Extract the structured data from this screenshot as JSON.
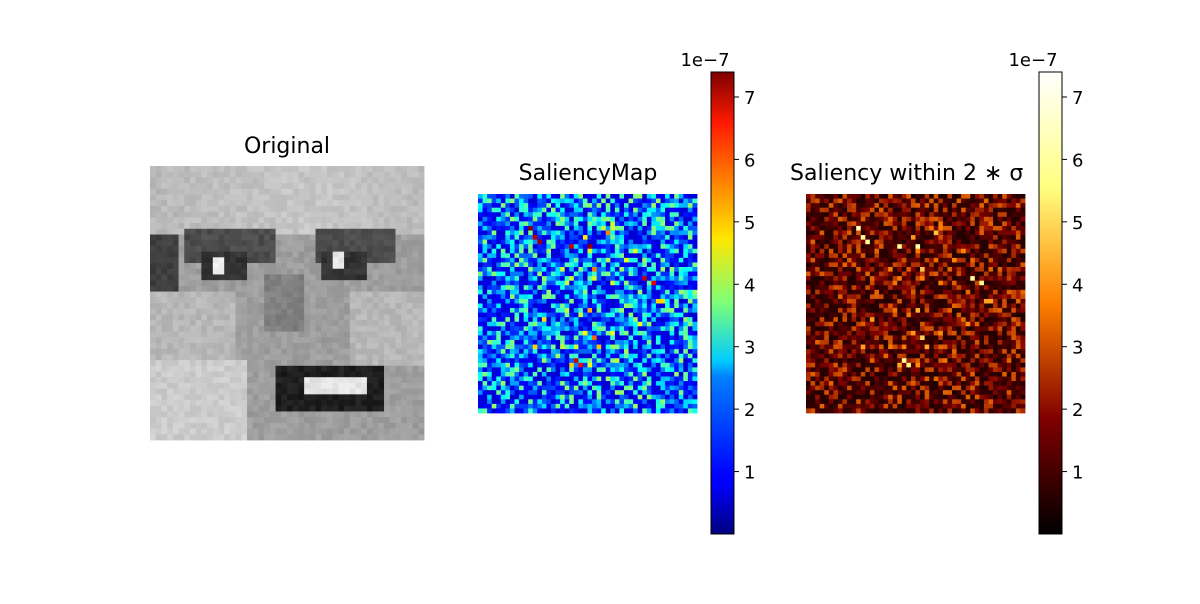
{
  "chart_data": [
    {
      "type": "heatmap",
      "title": "Original",
      "colormap": "gray",
      "grid": false,
      "axes": "off",
      "description_value_range": [
        0,
        1
      ]
    },
    {
      "type": "heatmap",
      "title": "SaliencyMap",
      "colormap": "jet",
      "grid": false,
      "axes": "off",
      "colorbar": {
        "offset_label": "1e−7",
        "ticks": [
          1,
          2,
          3,
          4,
          5,
          6,
          7
        ],
        "tick_labels": [
          "1",
          "2",
          "3",
          "4",
          "5",
          "6",
          "7"
        ],
        "vmin": 0,
        "vmax": 7.4
      }
    },
    {
      "type": "heatmap",
      "title": "Saliency within 2 ∗ σ",
      "colormap": "afmhot",
      "grid": false,
      "axes": "off",
      "colorbar": {
        "offset_label": "1e−7",
        "ticks": [
          1,
          2,
          3,
          4,
          5,
          6,
          7
        ],
        "tick_labels": [
          "1",
          "2",
          "3",
          "4",
          "5",
          "6",
          "7"
        ],
        "vmin": 0,
        "vmax": 7.4
      }
    }
  ]
}
